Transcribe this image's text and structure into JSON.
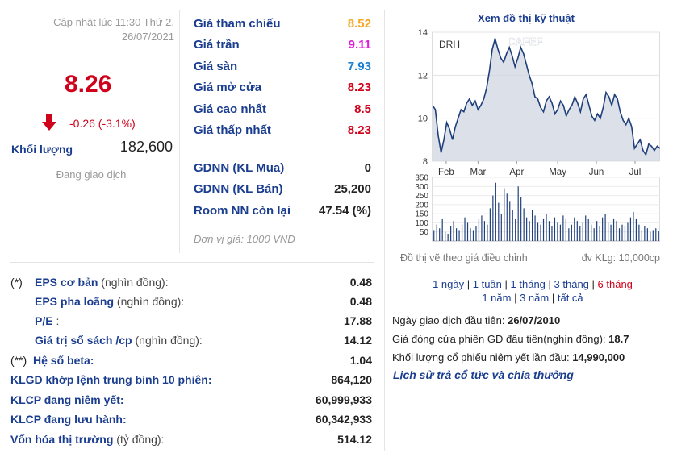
{
  "quote": {
    "update_time": "Cập nhật lúc 11:30 Thứ 2, 26/07/2021",
    "price": "8.26",
    "change": "-0.26 (-3.1%)",
    "volume_label": "Khối lượng",
    "volume_value": "182,600",
    "status": "Đang giao dịch",
    "colors": {
      "down": "#d0021b",
      "label": "#1a3d8f"
    }
  },
  "prices": [
    {
      "label": "Giá tham chiếu",
      "value": "8.52",
      "color": "#f5a623"
    },
    {
      "label": "Giá trần",
      "value": "9.11",
      "color": "#e020d8"
    },
    {
      "label": "Giá sàn",
      "value": "7.93",
      "color": "#1a7fd0"
    },
    {
      "label": "Giá mở cửa",
      "value": "8.23",
      "color": "#d0021b"
    },
    {
      "label": "Giá cao nhất",
      "value": "8.5",
      "color": "#d0021b"
    },
    {
      "label": "Giá thấp nhất",
      "value": "8.23",
      "color": "#d0021b"
    }
  ],
  "foreign": [
    {
      "label": "GDNN (KL Mua)",
      "value": "0"
    },
    {
      "label": "GDNN (KL Bán)",
      "value": "25,200"
    },
    {
      "label": "Room NN còn lại",
      "value": "47.54 (%)"
    }
  ],
  "unit_note": "Đơn vị giá: 1000 VNĐ",
  "fundamentals": [
    {
      "mark": "(*)",
      "label": "EPS cơ bản",
      "sub": " (nghìn đồng):",
      "value": "0.48"
    },
    {
      "mark": "",
      "label": "EPS pha loãng",
      "sub": " (nghìn đồng):",
      "value": "0.48"
    },
    {
      "mark": "",
      "label": "P/E",
      "sub": " :",
      "value": "17.88"
    },
    {
      "mark": "",
      "label": "Giá trị sổ sách /cp",
      "sub": " (nghìn đồng):",
      "value": "14.12"
    },
    {
      "mark": "(**)",
      "label": "Hệ số beta:",
      "sub": "",
      "value": "1.04"
    },
    {
      "mark": "",
      "label": "KLGD khớp lệnh trung bình 10 phiên:",
      "sub": "",
      "value": "864,120"
    },
    {
      "mark": "",
      "label": "KLCP đang niêm yết:",
      "sub": "",
      "value": "60,999,933"
    },
    {
      "mark": "",
      "label": "KLCP đang lưu hành:",
      "sub": "",
      "value": "60,342,933"
    },
    {
      "mark": "",
      "label": "Vốn hóa thị trường",
      "sub": " (tỷ đồng):",
      "value": "514.12"
    }
  ],
  "chart_panel": {
    "title": "Xem đồ thị kỹ thuật",
    "note_left": "Đồ thị vẽ theo giá điều chỉnh",
    "note_right": "đv KLg: 10,000cp",
    "ranges": [
      "1 ngày",
      "1 tuần",
      "1 tháng",
      "3 tháng",
      "6 tháng",
      "1 năm",
      "3 năm",
      "tất cả"
    ],
    "active_range": "6 tháng"
  },
  "chart_data": {
    "type": "area",
    "ticker": "DRH",
    "watermark": "CAFEF",
    "x_labels": [
      "Feb",
      "Mar",
      "Apr",
      "May",
      "Jun",
      "Jul"
    ],
    "price": {
      "yticks": [
        8,
        10,
        12,
        14
      ],
      "ylim": [
        8,
        14
      ],
      "values": [
        10.6,
        10.4,
        9.2,
        8.4,
        9.0,
        9.8,
        9.5,
        9.0,
        9.6,
        10.0,
        10.4,
        10.3,
        10.7,
        10.9,
        10.6,
        10.8,
        10.4,
        10.6,
        10.9,
        11.4,
        12.2,
        13.2,
        13.7,
        13.2,
        12.8,
        12.6,
        13.0,
        13.3,
        12.9,
        12.4,
        12.8,
        13.3,
        13.0,
        12.5,
        12.0,
        11.6,
        11.0,
        10.9,
        10.5,
        10.3,
        10.8,
        11.0,
        10.7,
        10.2,
        10.4,
        10.8,
        10.6,
        10.1,
        10.4,
        10.6,
        11.0,
        10.7,
        10.3,
        10.9,
        11.1,
        10.6,
        10.1,
        9.9,
        10.2,
        10.0,
        10.5,
        11.2,
        11.0,
        10.6,
        11.1,
        10.9,
        10.3,
        9.9,
        9.7,
        10.0,
        9.6,
        8.6,
        8.8,
        9.0,
        8.5,
        8.3,
        8.8,
        8.7,
        8.5,
        8.7,
        8.6
      ]
    },
    "volume": {
      "yticks": [
        50,
        100,
        150,
        200,
        250,
        300,
        350
      ],
      "ylim": [
        0,
        350
      ],
      "values": [
        60,
        90,
        70,
        120,
        50,
        40,
        80,
        110,
        70,
        60,
        90,
        130,
        100,
        70,
        60,
        80,
        120,
        140,
        110,
        90,
        180,
        250,
        320,
        210,
        150,
        290,
        260,
        220,
        170,
        120,
        300,
        240,
        180,
        130,
        110,
        170,
        140,
        100,
        90,
        120,
        150,
        110,
        80,
        130,
        100,
        90,
        140,
        120,
        70,
        90,
        130,
        110,
        80,
        100,
        140,
        120,
        90,
        70,
        110,
        80,
        130,
        150,
        100,
        90,
        120,
        110,
        70,
        90,
        80,
        100,
        130,
        160,
        120,
        90,
        60,
        80,
        70,
        50,
        60,
        70,
        55
      ]
    }
  },
  "listing": [
    {
      "label": "Ngày giao dịch đầu tiên: ",
      "value": "26/07/2010"
    },
    {
      "label": "Giá đóng cửa phiên GD đầu tiên(nghìn đồng): ",
      "value": "18.7"
    },
    {
      "label": "Khối lượng cổ phiếu niêm yết lần đầu: ",
      "value": "14,990,000"
    }
  ],
  "history_link": "Lịch sử trả cổ tức và chia thưởng"
}
